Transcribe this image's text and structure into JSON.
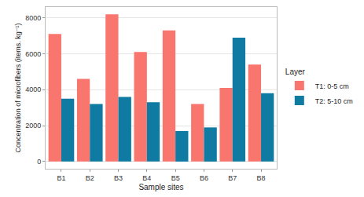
{
  "chart_data": {
    "type": "bar",
    "x_label": "Sample sites",
    "y_label": "Concentration of microfibers (items. kg⁻¹)",
    "legend_title": "Layer",
    "categories": [
      "B1",
      "B2",
      "B3",
      "B4",
      "B5",
      "B6",
      "B7",
      "B8"
    ],
    "series": [
      {
        "name": "T1: 0-5 cm",
        "color": "#f8766d",
        "values": [
          7100,
          4600,
          8200,
          6100,
          7300,
          3200,
          4100,
          5400
        ]
      },
      {
        "name": "T2: 5-10 cm",
        "color": "#0f7ba2",
        "values": [
          3500,
          3200,
          3600,
          3300,
          1700,
          1900,
          6900,
          3800
        ]
      }
    ],
    "ylim": [
      -400,
      8600
    ],
    "yticks": [
      0,
      2000,
      4000,
      6000,
      8000
    ],
    "grid": true,
    "legend": "right"
  }
}
